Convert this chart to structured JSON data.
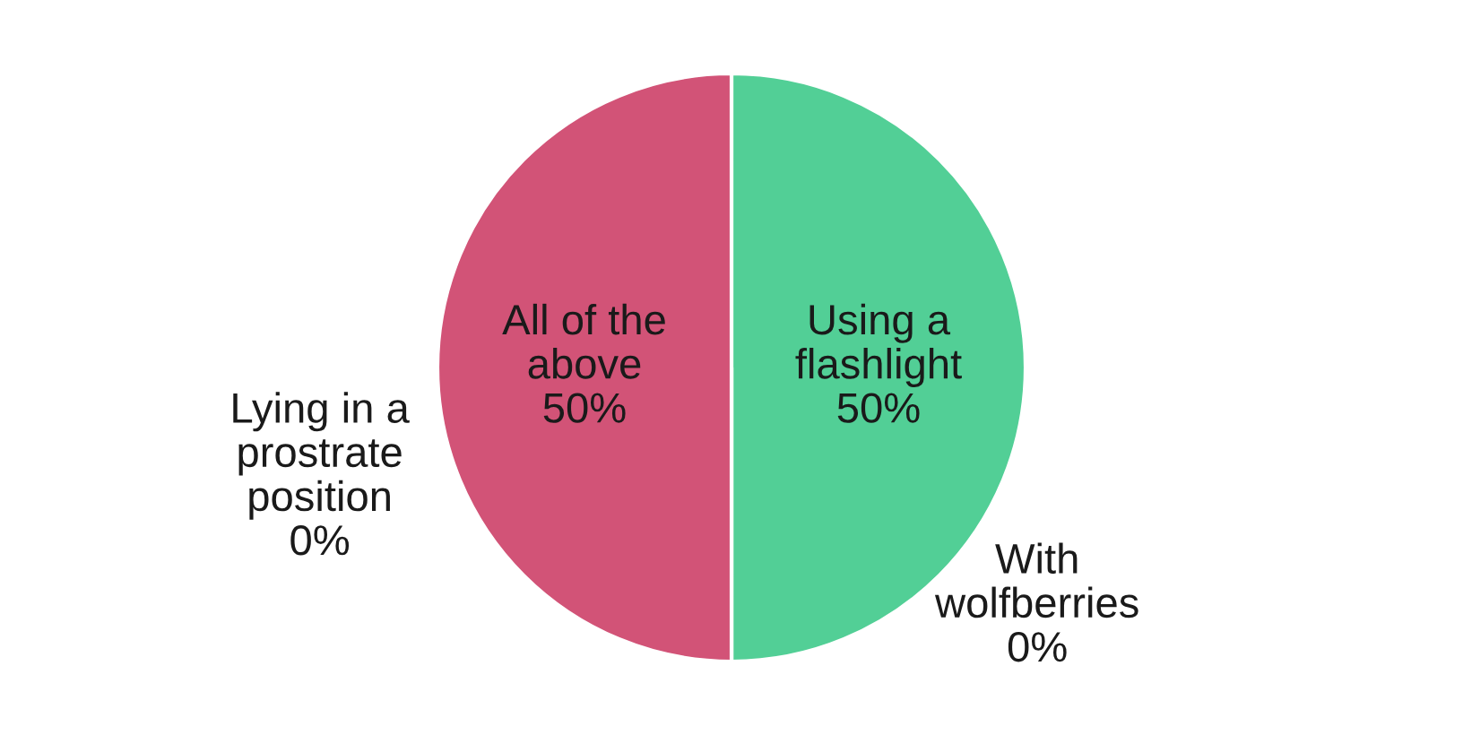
{
  "chart_data": {
    "type": "pie",
    "categories": [
      "Using a flashlight",
      "With wolfberries",
      "Lying in a prostrate position",
      "All of the above"
    ],
    "values": [
      50,
      0,
      0,
      50
    ],
    "colors": [
      "#52cf96",
      "#2e6e50",
      "#8a3450",
      "#d25377"
    ],
    "value_labels": [
      "50%",
      "0%",
      "0%",
      "50%"
    ],
    "legend": false
  }
}
